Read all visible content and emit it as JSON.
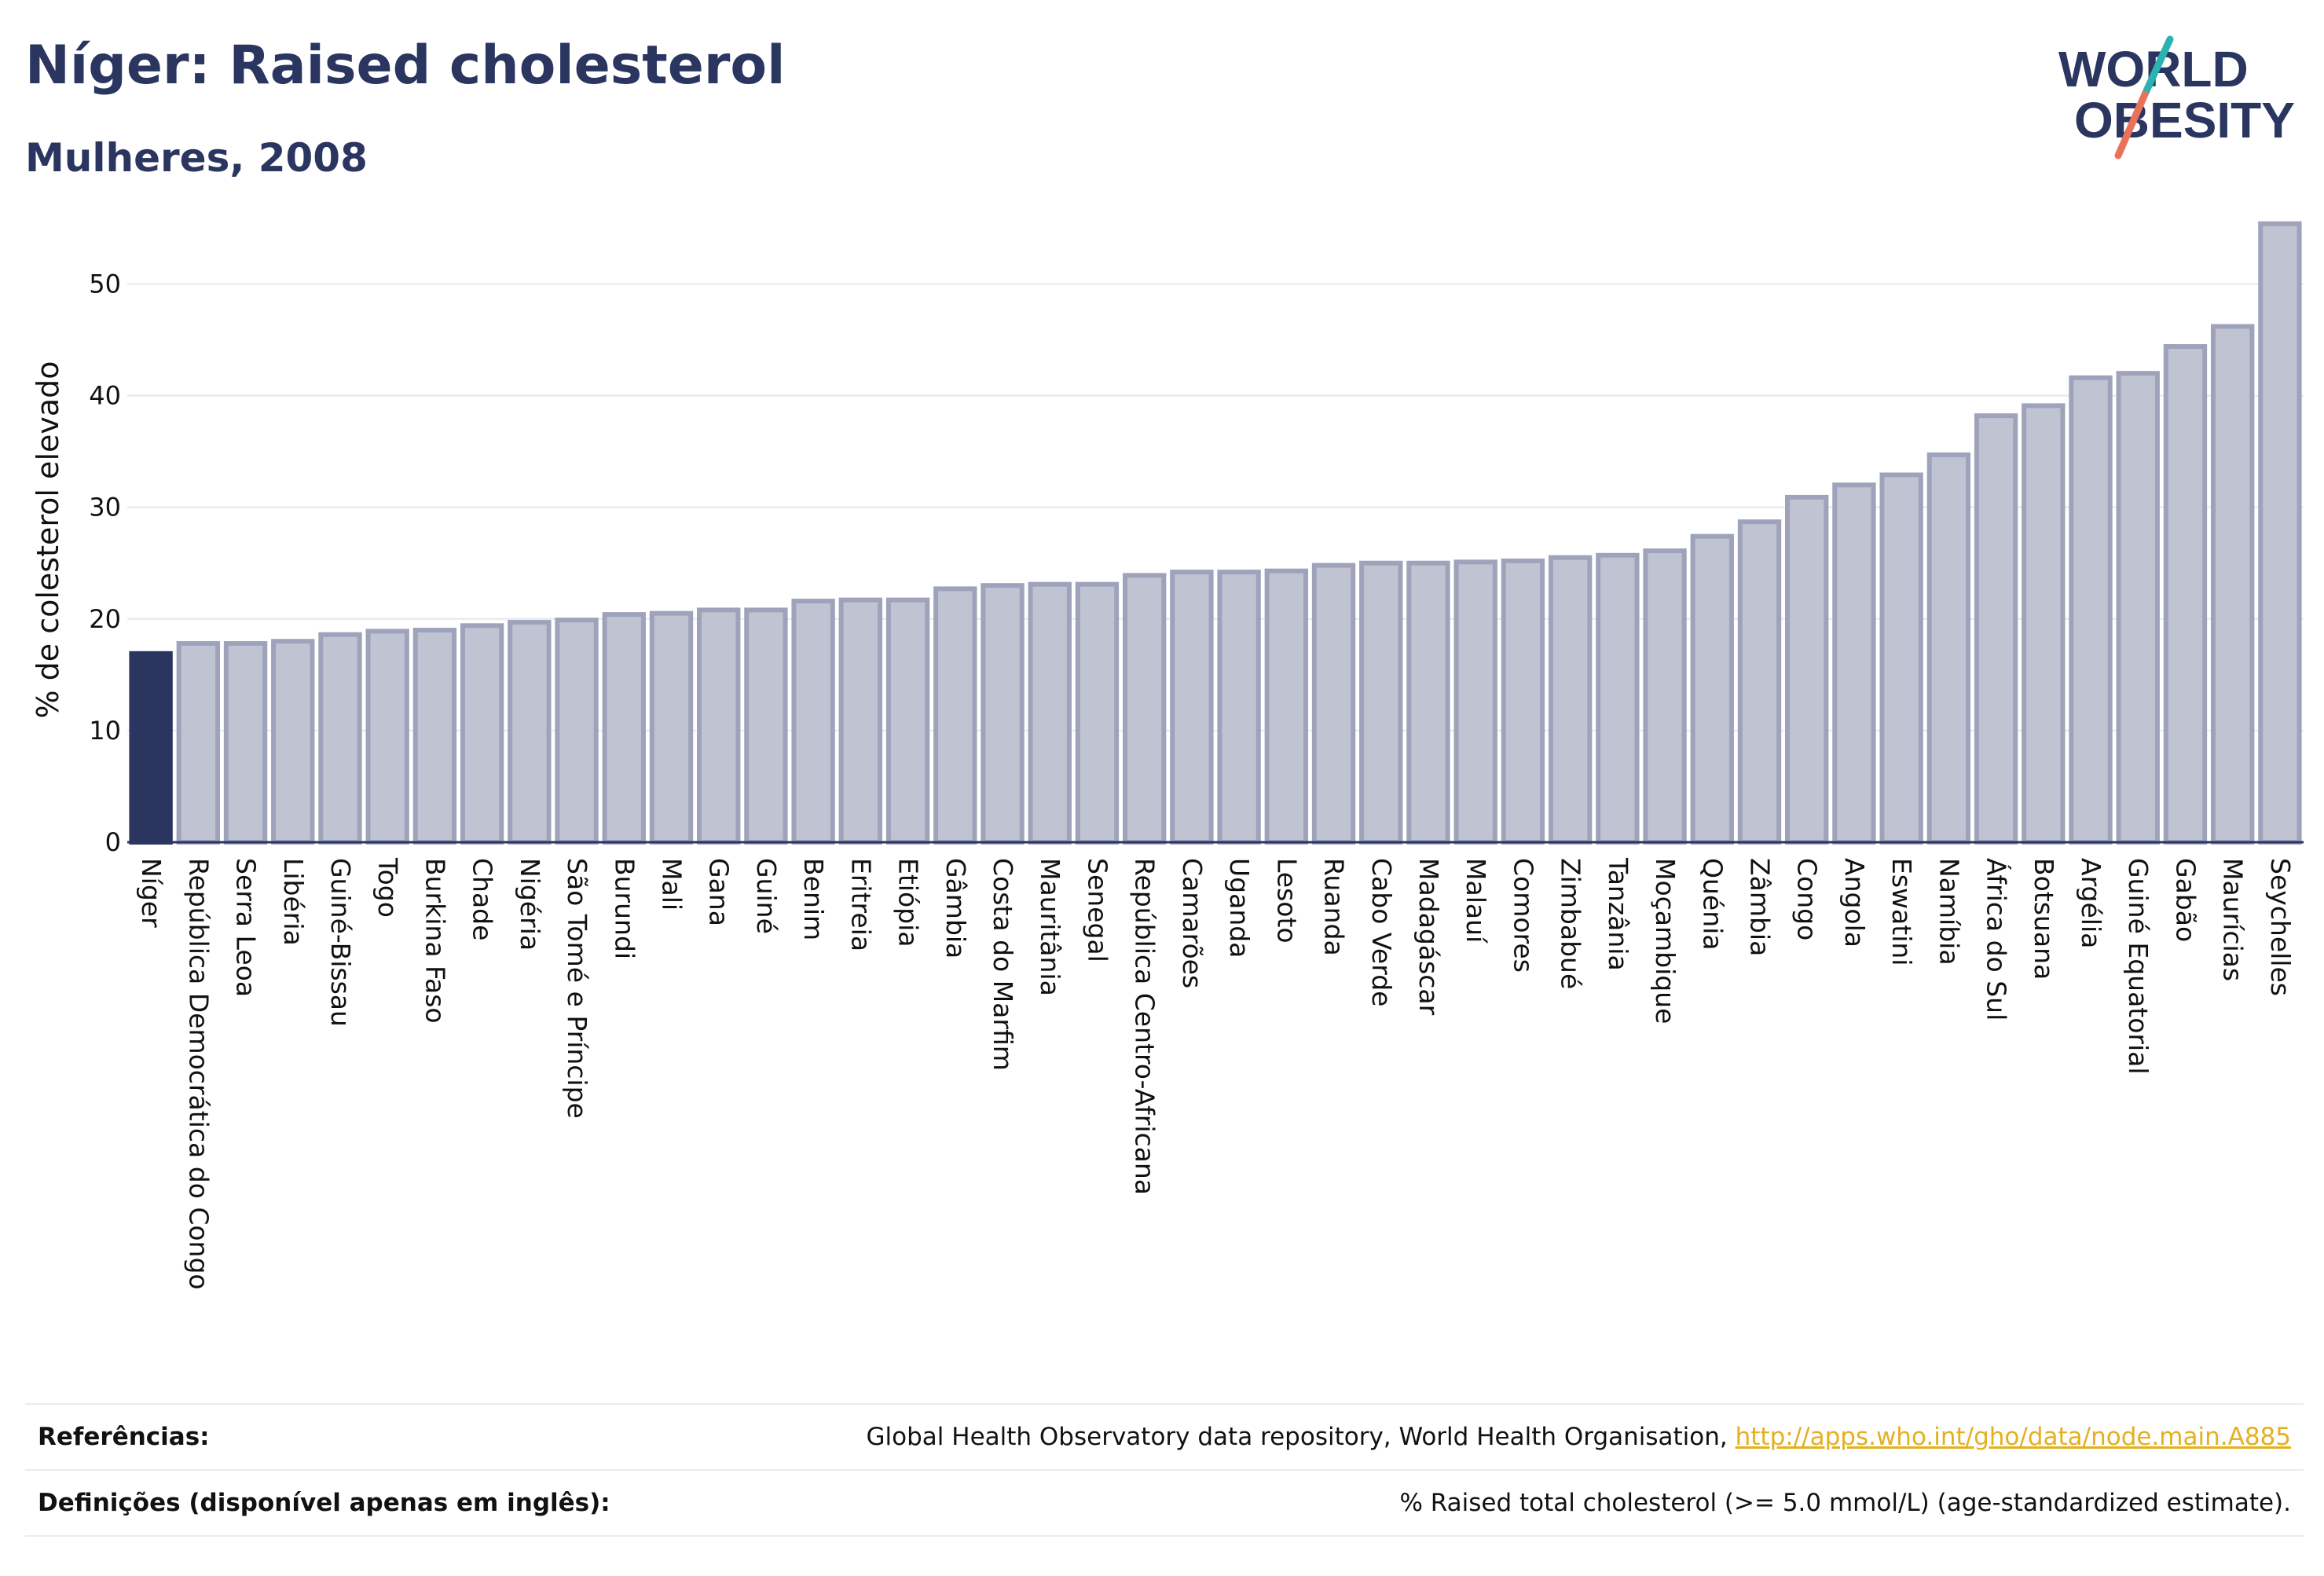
{
  "header": {
    "title": "Níger: Raised cholesterol",
    "subtitle": "Mulheres, 2008"
  },
  "logo": {
    "line1": "WORLD",
    "line2": "OBESITY",
    "colors": {
      "text": "#2a3560",
      "slash_teal": "#2ab3b1",
      "slash_coral": "#e8735a"
    }
  },
  "colors": {
    "highlight_bar": "#2a3560",
    "bar_fill": "#c0c3d2",
    "bar_stroke": "#9ea3bb",
    "grid": "#e6e8ee",
    "axis": "#2a3560"
  },
  "chart_data": {
    "type": "bar",
    "title": "",
    "xlabel": "",
    "ylabel": "% de colesterol elevado",
    "ylim": [
      0,
      57
    ],
    "yticks": [
      0,
      10,
      20,
      30,
      40,
      50
    ],
    "grid": true,
    "highlight": "Níger",
    "categories": [
      "Níger",
      "República Democrática do Congo",
      "Serra Leoa",
      "Libéria",
      "Guiné-Bissau",
      "Togo",
      "Burkina Faso",
      "Chade",
      "Nigéria",
      "São Tomé e Príncipe",
      "Burundi",
      "Mali",
      "Gana",
      "Guiné",
      "Benim",
      "Eritreia",
      "Etiópia",
      "Gâmbia",
      "Costa do Marfim",
      "Mauritânia",
      "Senegal",
      "República Centro-Africana",
      "Camarões",
      "Uganda",
      "Lesoto",
      "Ruanda",
      "Cabo Verde",
      "Madagáscar",
      "Malauí",
      "Comores",
      "Zimbabué",
      "Tanzânia",
      "Moçambique",
      "Quénia",
      "Zâmbia",
      "Congo",
      "Angola",
      "Eswatini",
      "Namíbia",
      "África do Sul",
      "Botsuana",
      "Argélia",
      "Guiné Equatorial",
      "Gabão",
      "Maurícias",
      "Seychelles"
    ],
    "values": [
      16.9,
      17.8,
      17.8,
      18.0,
      18.6,
      18.9,
      19.0,
      19.4,
      19.7,
      19.9,
      20.4,
      20.5,
      20.8,
      20.8,
      21.6,
      21.7,
      21.7,
      22.7,
      23.0,
      23.1,
      23.1,
      23.9,
      24.2,
      24.2,
      24.3,
      24.8,
      25.0,
      25.0,
      25.1,
      25.2,
      25.5,
      25.7,
      26.1,
      27.4,
      28.7,
      30.9,
      32.0,
      32.9,
      34.7,
      38.2,
      39.1,
      41.6,
      42.0,
      44.4,
      46.2,
      55.4
    ]
  },
  "footer": {
    "references_label": "Referências:",
    "references_text": "Global Health Observatory data repository, World Health Organisation, ",
    "references_link": "http://apps.who.int/gho/data/node.main.A885",
    "definitions_label": "Definições (disponível apenas em inglês):",
    "definitions_text": "% Raised total cholesterol (>= 5.0 mmol/L) (age-standardized estimate)."
  }
}
